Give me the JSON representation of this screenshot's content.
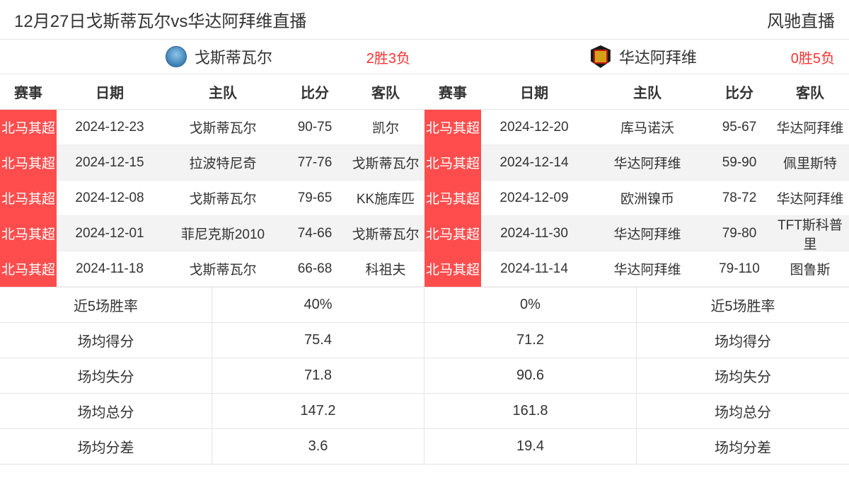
{
  "header": {
    "title": "12月27日戈斯蒂瓦尔vs华达阿拜维直播",
    "brand": "风驰直播"
  },
  "teams": {
    "left": {
      "name": "戈斯蒂瓦尔",
      "record": "2胜3负"
    },
    "right": {
      "name": "华达阿拜维",
      "record": "0胜5负"
    }
  },
  "columns": [
    "赛事",
    "日期",
    "主队",
    "比分",
    "客队"
  ],
  "league_label": "北马其超",
  "matches": {
    "left": [
      {
        "date": "2024-12-23",
        "home": "戈斯蒂瓦尔",
        "score": "90-75",
        "away": "凯尔"
      },
      {
        "date": "2024-12-15",
        "home": "拉波特尼奇",
        "score": "77-76",
        "away": "戈斯蒂瓦尔"
      },
      {
        "date": "2024-12-08",
        "home": "戈斯蒂瓦尔",
        "score": "79-65",
        "away": "KK施库匹"
      },
      {
        "date": "2024-12-01",
        "home": "菲尼克斯2010",
        "score": "74-66",
        "away": "戈斯蒂瓦尔"
      },
      {
        "date": "2024-11-18",
        "home": "戈斯蒂瓦尔",
        "score": "66-68",
        "away": "科祖夫"
      }
    ],
    "right": [
      {
        "date": "2024-12-20",
        "home": "库马诺沃",
        "score": "95-67",
        "away": "华达阿拜维"
      },
      {
        "date": "2024-12-14",
        "home": "华达阿拜维",
        "score": "59-90",
        "away": "佩里斯特"
      },
      {
        "date": "2024-12-09",
        "home": "欧洲镍币",
        "score": "78-72",
        "away": "华达阿拜维"
      },
      {
        "date": "2024-11-30",
        "home": "华达阿拜维",
        "score": "79-80",
        "away": "TFT斯科普里"
      },
      {
        "date": "2024-11-14",
        "home": "华达阿拜维",
        "score": "79-110",
        "away": "图鲁斯"
      }
    ]
  },
  "stats": {
    "labels": {
      "winrate": "近5场胜率",
      "ppg": "场均得分",
      "papg": "场均失分",
      "total": "场均总分",
      "diff": "场均分差"
    },
    "left": {
      "winrate": "40%",
      "ppg": "75.4",
      "papg": "71.8",
      "total": "147.2",
      "diff": "3.6"
    },
    "right": {
      "winrate": "0%",
      "ppg": "71.2",
      "papg": "90.6",
      "total": "161.8",
      "diff": "19.4"
    }
  },
  "colors": {
    "league_bg": "#ff4d4d",
    "record_color": "#ff3333",
    "alt_row": "#f3f3f3",
    "border": "#e5e5e5"
  }
}
